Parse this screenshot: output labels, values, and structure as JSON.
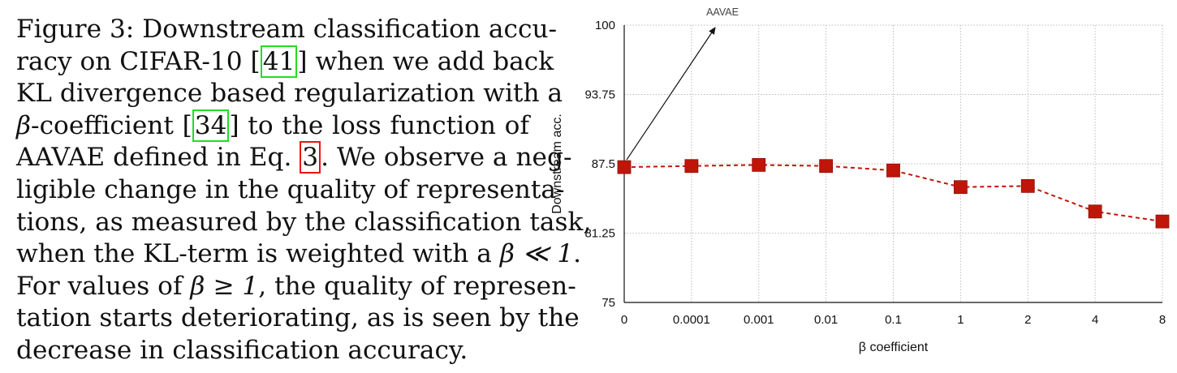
{
  "caption": {
    "lines": [
      "Figure 3: Downstream classification accu-",
      [
        "racy on CIFAR-10 [",
        "41",
        "] when we add back"
      ],
      "KL divergence based regularization with a",
      [
        "β",
        "-coefficient [",
        "34",
        "] to the loss function of"
      ],
      [
        "AAVAE defined in Eq. ",
        "3",
        ". We observe a neg-"
      ],
      "ligible change in the quality of representa-",
      "tions, as measured by the classification task,",
      [
        "when the KL-term is weighted with a ",
        "β ≪ 1",
        "."
      ],
      [
        "For values of ",
        "β ≥ 1",
        ", the quality of represen-"
      ],
      "tation starts deteriorating, as is seen by the",
      "decrease in classification accuracy."
    ]
  },
  "chart_data": {
    "type": "line",
    "categories": [
      "0",
      "0.0001",
      "0.001",
      "0.01",
      "0.1",
      "1",
      "2",
      "4",
      "8"
    ],
    "series": [
      {
        "values": [
          87.2,
          87.3,
          87.4,
          87.3,
          86.9,
          85.4,
          85.5,
          83.2,
          82.3
        ]
      }
    ],
    "xlabel": "β coefficient",
    "ylabel": "Downstream acc.",
    "ylim": [
      75,
      100
    ],
    "yticks": [
      "75",
      "81.25",
      "87.5",
      "93.75",
      "100"
    ],
    "annotation": {
      "text": "AAVAE",
      "target_index": 0
    },
    "grid": true,
    "series_color": "#c0160a",
    "marker": "square",
    "line_style": "dashed"
  }
}
